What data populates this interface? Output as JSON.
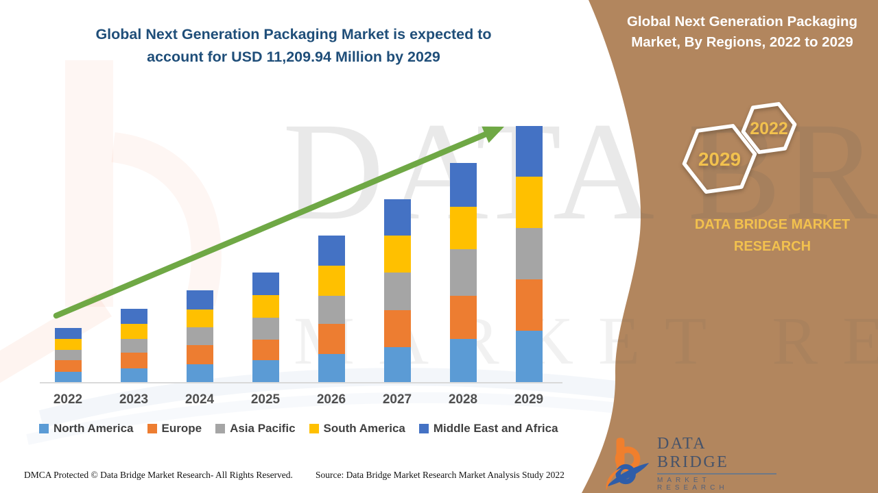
{
  "header": {
    "line1": "Global Next Generation Packaging Market is expected to",
    "line2": "account for USD 11,209.94 Million by 2029",
    "color": "#1F4E79"
  },
  "side_panel": {
    "bg_color": "#B2865E",
    "accent_gold": "#F2C14E",
    "heading_line1": "Global Next Generation Packaging",
    "heading_line2": "Market, By Regions, 2022 to 2029",
    "badges": [
      {
        "label": "2029"
      },
      {
        "label": "2022"
      }
    ],
    "brand_text": "DATA BRIDGE MARKET RESEARCH"
  },
  "watermark": {
    "line1": "DATA BRIDGE",
    "line2": "MARKET RESEARCH"
  },
  "chart_data": {
    "type": "bar",
    "stacked": true,
    "title": "Global Next Generation Packaging Market is expected to account for USD 11,209.94 Million by 2029",
    "unit": "USD Million",
    "xlabel": "",
    "ylabel": "",
    "gridlines": false,
    "legend_position": "bottom",
    "ylim": [
      0,
      12000
    ],
    "categories": [
      "2022",
      "2023",
      "2024",
      "2025",
      "2026",
      "2027",
      "2028",
      "2029"
    ],
    "series": [
      {
        "name": "North America",
        "color": "#5B9BD5",
        "values": [
          450,
          600,
          780,
          960,
          1230,
          1530,
          1890,
          2250
        ]
      },
      {
        "name": "Europe",
        "color": "#ED7D31",
        "values": [
          510,
          690,
          840,
          900,
          1320,
          1620,
          1890,
          2250
        ]
      },
      {
        "name": "Asia Pacific",
        "color": "#A5A5A5",
        "values": [
          450,
          600,
          780,
          960,
          1230,
          1650,
          2040,
          2250
        ]
      },
      {
        "name": "South America",
        "color": "#FFC000",
        "values": [
          480,
          660,
          780,
          990,
          1320,
          1620,
          1860,
          2250
        ]
      },
      {
        "name": "Middle East and Africa",
        "color": "#4472C4",
        "values": [
          480,
          660,
          840,
          990,
          1320,
          1590,
          1920,
          2209.94
        ]
      }
    ],
    "totals": [
      2370,
      3210,
      4020,
      4800,
      6420,
      8010,
      9600,
      11209.94
    ],
    "trend_arrow": true,
    "trend_arrow_color": "#6FA845"
  },
  "footer": {
    "dmca": "DMCA Protected © Data Bridge Market Research- All Rights Reserved.",
    "source": "Source: Data Bridge Market Research Market Analysis Study 2022",
    "logo_brand": "DATA BRIDGE",
    "logo_sub": "MARKET RESEARCH"
  }
}
